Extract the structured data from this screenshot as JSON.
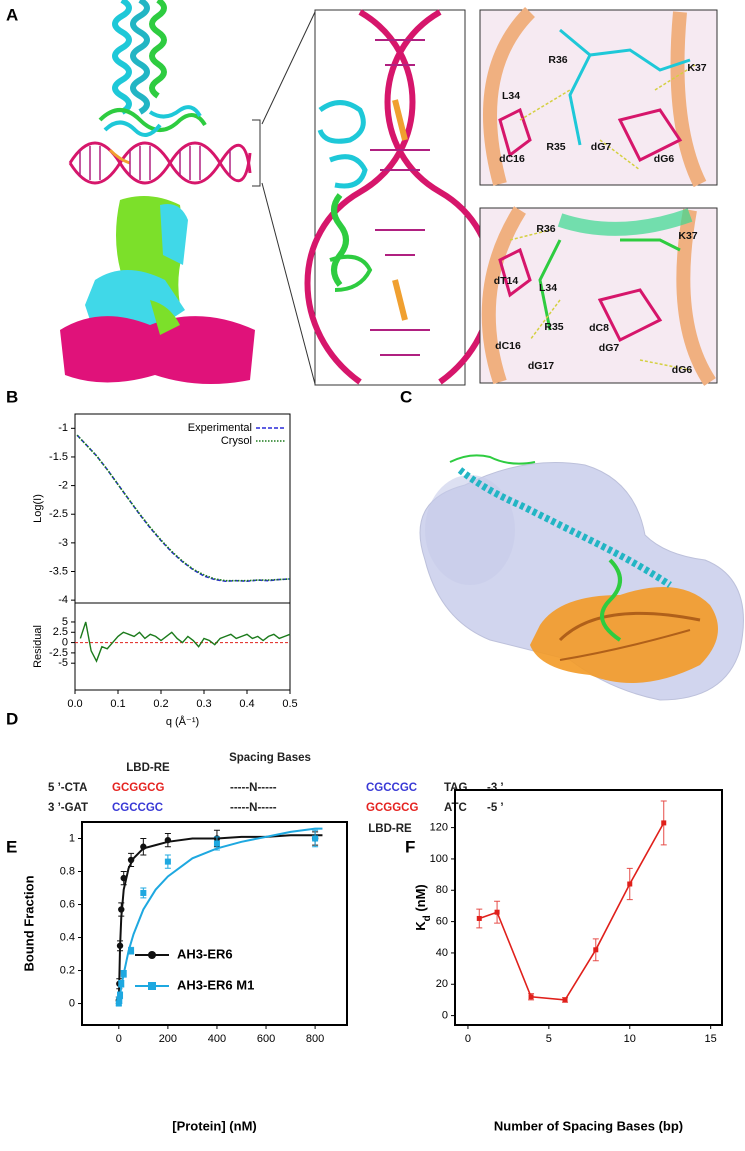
{
  "panel_labels": [
    "A",
    "B",
    "C",
    "D",
    "E",
    "F"
  ],
  "panel_a": {
    "inset_top": [
      "R36",
      "K37",
      "L34",
      "R35",
      "dC16",
      "dG7",
      "dG6"
    ],
    "inset_bottom": [
      "R36",
      "K37",
      "dT14",
      "L34",
      "R35",
      "dC8",
      "dC16",
      "dG7",
      "dG17",
      "dG6"
    ]
  },
  "panel_d": {
    "title": "Spacing Bases",
    "top_label": "LBD-RE",
    "bottom_label": "LBD-RE",
    "rows": [
      [
        "5 ’-CTA",
        "GCGGCG",
        "-----N-----",
        "CGCCGC",
        "TAG",
        "-3 ’"
      ],
      [
        "3 ’-GAT",
        "CGCCGC",
        "-----N-----",
        "GCGGCG",
        "ATC",
        "-5 ’"
      ]
    ]
  },
  "chart_data": [
    {
      "type": "line",
      "ylabel": "Log(I)",
      "x": [
        0.005,
        0.025,
        0.05,
        0.075,
        0.1,
        0.125,
        0.15,
        0.175,
        0.2,
        0.225,
        0.25,
        0.275,
        0.3,
        0.325,
        0.35,
        0.375,
        0.4,
        0.425,
        0.45,
        0.475,
        0.5
      ],
      "series": [
        {
          "name": "Experimental",
          "color": "#2a2ad8",
          "dash": "4,2",
          "values": [
            -1.12,
            -1.28,
            -1.48,
            -1.72,
            -1.98,
            -2.24,
            -2.5,
            -2.74,
            -2.96,
            -3.16,
            -3.33,
            -3.47,
            -3.58,
            -3.64,
            -3.67,
            -3.66,
            -3.67,
            -3.65,
            -3.66,
            -3.64,
            -3.63
          ]
        },
        {
          "name": "Crysol",
          "color": "#1b7a1b",
          "dash": "1.5,1.5",
          "values": [
            -1.12,
            -1.28,
            -1.48,
            -1.72,
            -1.98,
            -2.24,
            -2.49,
            -2.73,
            -2.95,
            -3.15,
            -3.32,
            -3.46,
            -3.56,
            -3.63,
            -3.66,
            -3.66,
            -3.66,
            -3.65,
            -3.65,
            -3.64,
            -3.63
          ]
        }
      ],
      "xlim": [
        0,
        0.5
      ],
      "ylim": [
        -4.05,
        -0.75
      ],
      "yticks": [
        -1,
        -1.5,
        -2,
        -2.5,
        -3,
        -3.5,
        -4
      ],
      "legend": "upper right"
    },
    {
      "type": "line",
      "ylabel": "Residual",
      "xlabel": "q (Å⁻¹)",
      "x": [
        0.0125,
        0.025,
        0.0375,
        0.05,
        0.0625,
        0.075,
        0.0875,
        0.1,
        0.1125,
        0.125,
        0.1375,
        0.15,
        0.1625,
        0.175,
        0.1875,
        0.2,
        0.2125,
        0.225,
        0.2375,
        0.25,
        0.2625,
        0.275,
        0.2875,
        0.3,
        0.3125,
        0.325,
        0.3375,
        0.35,
        0.3625,
        0.375,
        0.3875,
        0.4,
        0.4125,
        0.425,
        0.4375,
        0.45,
        0.4625,
        0.475,
        0.4875,
        0.5
      ],
      "series": [
        {
          "color": "#1b7a1b",
          "values": [
            1,
            5,
            -2,
            -4.5,
            -1,
            -1.5,
            0,
            1.5,
            2.5,
            2,
            1.5,
            2.5,
            1,
            2,
            1.5,
            0.5,
            1.5,
            2.5,
            1,
            0,
            1.5,
            0.5,
            -1,
            1,
            0.5,
            -0.5,
            1,
            1.5,
            2,
            1,
            1.5,
            2,
            1,
            1.5,
            0.5,
            1.5,
            2,
            1,
            1.5,
            2
          ]
        }
      ],
      "hline": 0,
      "hline_color": "#e0201b",
      "xlim": [
        0,
        0.5
      ],
      "ylim": [
        -11.5,
        9.6
      ],
      "xticks": [
        {
          "value": 0,
          "label": "0.0"
        },
        0.1,
        0.2,
        0.3,
        0.4,
        0.5
      ],
      "yticks": [
        5,
        2.5,
        0,
        -2.5,
        -5
      ]
    },
    {
      "type": "scatter",
      "xlabel": "[Protein] (nM)",
      "ylabel": "Bound Fraction",
      "fit_x": [
        0,
        5,
        10,
        20,
        40,
        60,
        100,
        150,
        200,
        300,
        400,
        500,
        600,
        700,
        800,
        830
      ],
      "series": [
        {
          "name": "AH3-ER6",
          "color": "#111111",
          "marker": "circle",
          "x": [
            0,
            2,
            5,
            10,
            20,
            50,
            100,
            200,
            400,
            800
          ],
          "values": [
            0.02,
            0.12,
            0.35,
            0.57,
            0.76,
            0.87,
            0.95,
            0.99,
            1.0,
            1.0
          ],
          "errors": [
            0.02,
            0.03,
            0.03,
            0.04,
            0.04,
            0.04,
            0.05,
            0.04,
            0.05,
            0.04
          ],
          "fit": [
            0,
            0.34,
            0.52,
            0.69,
            0.82,
            0.88,
            0.94,
            0.96,
            0.98,
            1.0,
            1.0,
            1.01,
            1.01,
            1.02,
            1.02,
            1.02
          ]
        },
        {
          "name": "AH3-ER6 M1",
          "color": "#1ea8e0",
          "marker": "square",
          "x": [
            0,
            2,
            5,
            10,
            20,
            50,
            100,
            200,
            400,
            800
          ],
          "values": [
            0.0,
            0.02,
            0.05,
            0.12,
            0.18,
            0.32,
            0.67,
            0.86,
            0.97,
            1.0
          ],
          "errors": [
            0.01,
            0.02,
            0.02,
            0.02,
            0.02,
            0.02,
            0.03,
            0.04,
            0.04,
            0.05
          ],
          "fit": [
            0,
            0.05,
            0.1,
            0.18,
            0.32,
            0.42,
            0.57,
            0.69,
            0.77,
            0.88,
            0.94,
            0.98,
            1.01,
            1.04,
            1.06,
            1.06
          ]
        }
      ],
      "xlim": [
        -150,
        930
      ],
      "ylim": [
        -0.13,
        1.1
      ],
      "xticks": [
        0,
        200,
        400,
        600,
        800
      ],
      "yticks": [
        0,
        0.2,
        0.4,
        0.6,
        0.8,
        1
      ],
      "legend": "center"
    },
    {
      "type": "line",
      "xlabel": "Number of Spacing Bases (bp)",
      "ylabel": [
        "K",
        "d",
        " (nM)"
      ],
      "x": [
        0.7,
        1.8,
        3.9,
        6,
        7.9,
        10,
        12.1
      ],
      "series": [
        {
          "color": "#e0201b",
          "values": [
            62,
            66,
            12,
            10,
            42,
            84,
            123
          ],
          "errors": [
            6,
            7,
            2,
            1.5,
            7,
            10,
            14
          ]
        }
      ],
      "xlim": [
        -0.8,
        15.7
      ],
      "ylim": [
        -6,
        144
      ],
      "xticks": [
        0,
        5,
        10,
        15
      ],
      "yticks": [
        0,
        20,
        40,
        60,
        80,
        100,
        120
      ]
    }
  ]
}
